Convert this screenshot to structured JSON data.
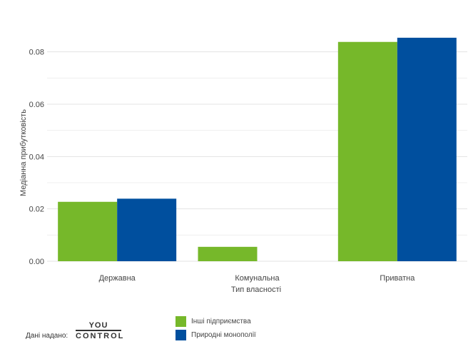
{
  "chart_data": {
    "type": "bar",
    "categories": [
      "Державна",
      "Комунальна",
      "Приватна"
    ],
    "series": [
      {
        "name": "Інші підприємства",
        "color": "#76b82a",
        "values": [
          0.0227,
          0.0055,
          0.0838
        ]
      },
      {
        "name": "Природні монополії",
        "color": "#004f9e",
        "values": [
          0.0239,
          null,
          0.0854
        ]
      }
    ],
    "xlabel": "Тип власності",
    "ylabel": "Медіанна прибутковість",
    "ylim": [
      0,
      0.09
    ],
    "yticks": [
      "0.00",
      "0.02",
      "0.04",
      "0.06",
      "0.08"
    ],
    "ytick_values": [
      0,
      0.02,
      0.04,
      0.06,
      0.08
    ],
    "grid": true,
    "legend_position": "bottom"
  },
  "footer": {
    "credit_text": "Дані надано:",
    "logo_line1": "YOU",
    "logo_line2": "CONTROL"
  }
}
